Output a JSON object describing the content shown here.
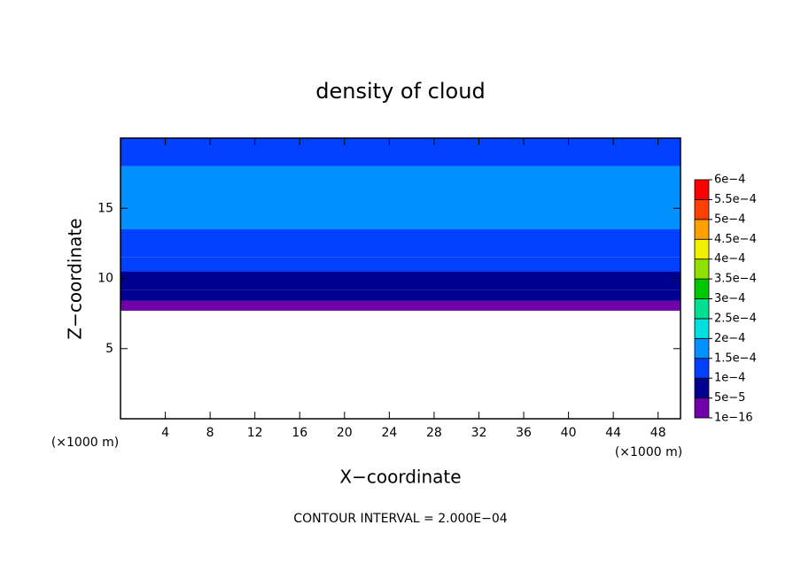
{
  "chart_data": {
    "type": "contour",
    "title": "density of cloud",
    "xlabel": "X−coordinate",
    "ylabel": "Z−coordinate",
    "x_unit": "(×1000 m)",
    "y_unit": "(×1000 m)",
    "note": "CONTOUR INTERVAL = 2.000E−04",
    "xlim": [
      0,
      50
    ],
    "ylim": [
      0,
      20
    ],
    "xticks": [
      4,
      8,
      12,
      16,
      20,
      24,
      28,
      32,
      36,
      40,
      44,
      48
    ],
    "yticks": [
      5,
      10,
      15
    ],
    "profile": {
      "z_edges": [
        7.7,
        8.4,
        9.2,
        10.5,
        11.5,
        13.5,
        18,
        20
      ],
      "values": [
        2e-05,
        7e-05,
        9e-05,
        0.00012,
        0.00014,
        0.00017,
        0.00013
      ]
    },
    "colorbar": {
      "levels": [
        {
          "value": 1e-16,
          "label": "1e−16"
        },
        {
          "value": 5e-05,
          "label": "5e−5"
        },
        {
          "value": 0.0001,
          "label": "1e−4"
        },
        {
          "value": 0.00015,
          "label": "1.5e−4"
        },
        {
          "value": 0.0002,
          "label": "2e−4"
        },
        {
          "value": 0.00025,
          "label": "2.5e−4"
        },
        {
          "value": 0.0003,
          "label": "3e−4"
        },
        {
          "value": 0.00035,
          "label": "3.5e−4"
        },
        {
          "value": 0.0004,
          "label": "4e−4"
        },
        {
          "value": 0.00045,
          "label": "4.5e−4"
        },
        {
          "value": 0.0005,
          "label": "5e−4"
        },
        {
          "value": 0.00055,
          "label": "5.5e−4"
        },
        {
          "value": 0.0006,
          "label": "6e−4"
        }
      ],
      "colors": [
        "#7000a8",
        "#000090",
        "#0040ff",
        "#0090ff",
        "#00e0e0",
        "#00e090",
        "#00c800",
        "#90e000",
        "#f0f000",
        "#ffa000",
        "#ff4000",
        "#ff0000",
        "#ff8888"
      ]
    }
  }
}
